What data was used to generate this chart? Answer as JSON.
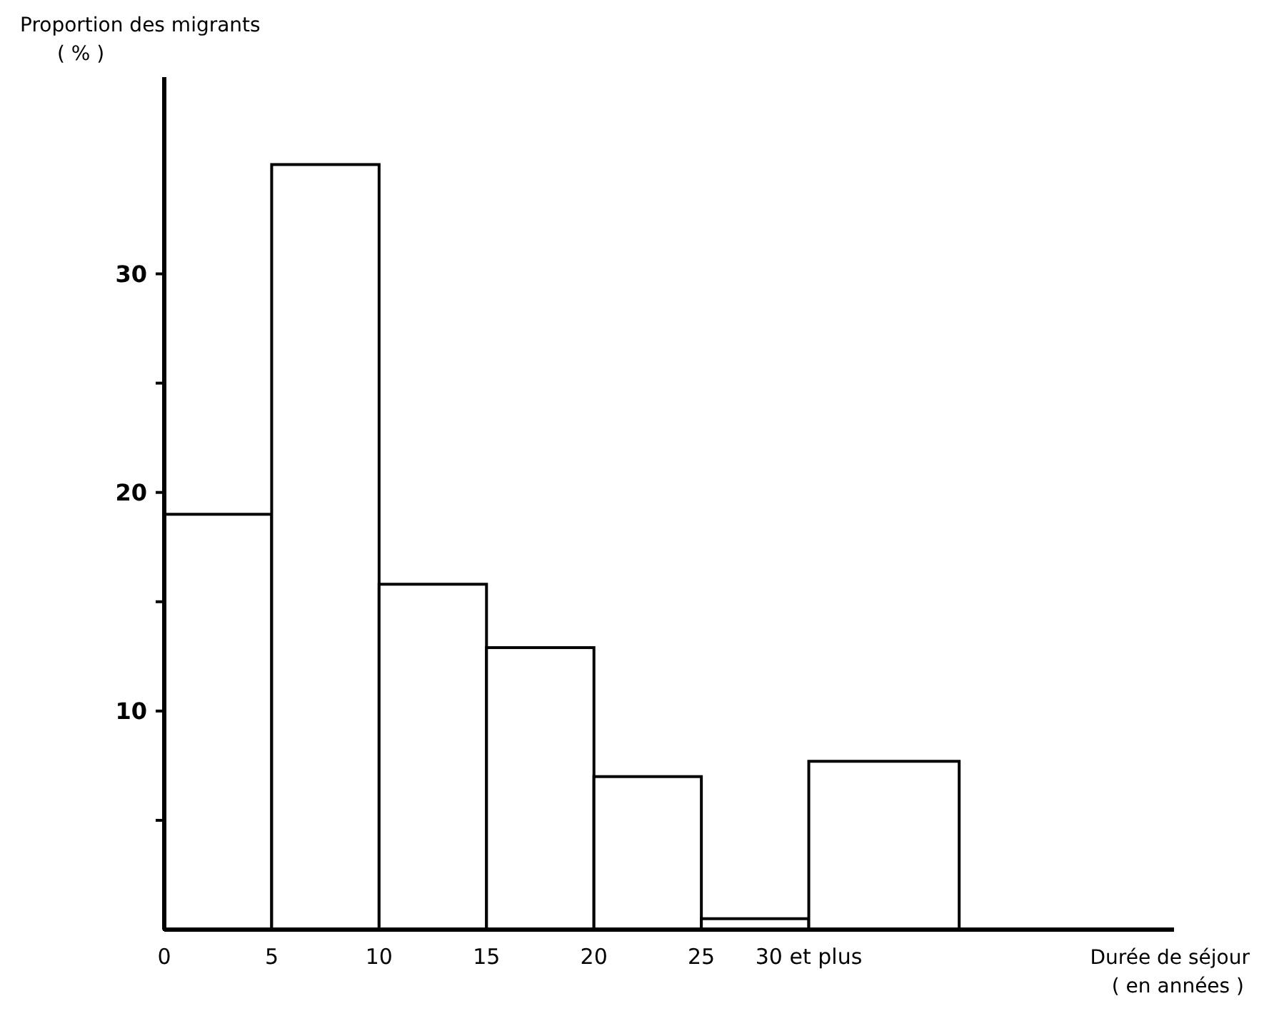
{
  "chart_data": {
    "type": "histogram",
    "ylabel": "Proportion des migrants\n( % )",
    "xlabel": "Durée de séjour\n( en années )",
    "bins": [
      0,
      5,
      10,
      15,
      20,
      25,
      30,
      37
    ],
    "values": [
      19,
      35,
      15.8,
      12.9,
      7,
      0.5,
      7.7
    ],
    "color": "#ffffff",
    "xlim": [
      0,
      47
    ],
    "ylim": [
      0,
      39
    ],
    "xticks": [
      0,
      5,
      10,
      15,
      20,
      25,
      {
        "value": 30,
        "label": "30 et plus"
      }
    ],
    "yticks": [
      {
        "value": 5,
        "label": null
      },
      10,
      {
        "value": 15,
        "label": null
      },
      20,
      {
        "value": 25,
        "label": null
      },
      30
    ],
    "grid": false
  }
}
